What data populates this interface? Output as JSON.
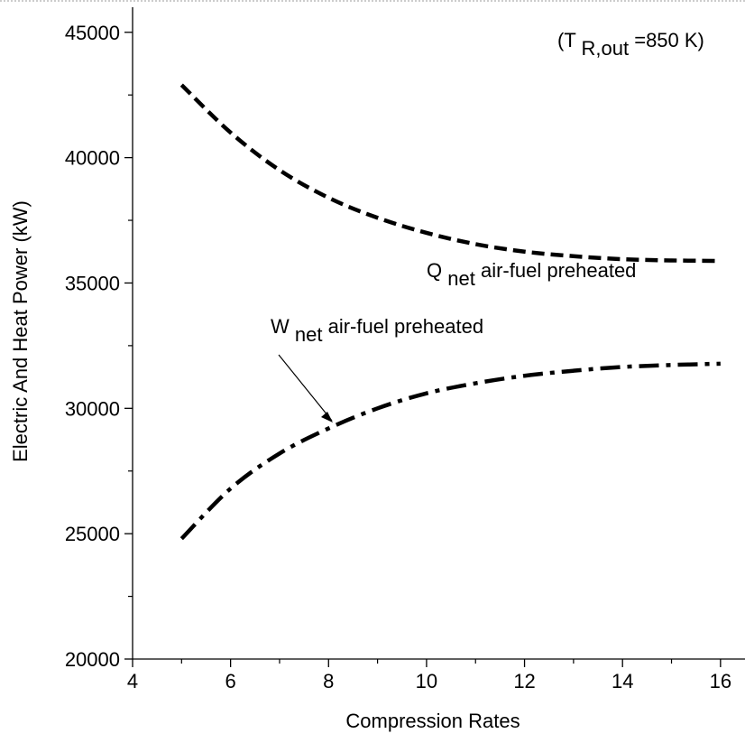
{
  "chart_data": {
    "type": "line",
    "xlabel": "Compression Rates",
    "ylabel": "Electric And Heat Power (kW)",
    "xlim": [
      4,
      16.5
    ],
    "ylim": [
      20000,
      46000
    ],
    "x_ticks": [
      4,
      6,
      8,
      10,
      12,
      14,
      16
    ],
    "y_ticks": [
      20000,
      25000,
      30000,
      35000,
      40000,
      45000
    ],
    "grid": false,
    "annotations": {
      "condition": {
        "prefix": "(T",
        "sub": "R,out",
        "suffix": "=850 K)"
      },
      "q_label": {
        "main": "Q",
        "sub": "net",
        "rest": " air-fuel preheated"
      },
      "w_label": {
        "main": "W",
        "sub": "net",
        "rest": " air-fuel preheated"
      }
    },
    "series": [
      {
        "line_style": "dashed",
        "x": [
          5,
          6,
          7,
          8,
          9,
          10,
          11,
          12,
          13,
          14,
          15,
          16
        ],
        "values": [
          42900,
          41000,
          39500,
          38400,
          37600,
          37000,
          36550,
          36250,
          36070,
          35950,
          35900,
          35880
        ]
      },
      {
        "line_style": "dash-dot",
        "x": [
          5,
          6,
          7,
          8,
          9,
          10,
          11,
          12,
          13,
          14,
          15,
          16
        ],
        "values": [
          24800,
          26800,
          28200,
          29200,
          30000,
          30600,
          31000,
          31300,
          31500,
          31650,
          31730,
          31780
        ]
      }
    ]
  }
}
